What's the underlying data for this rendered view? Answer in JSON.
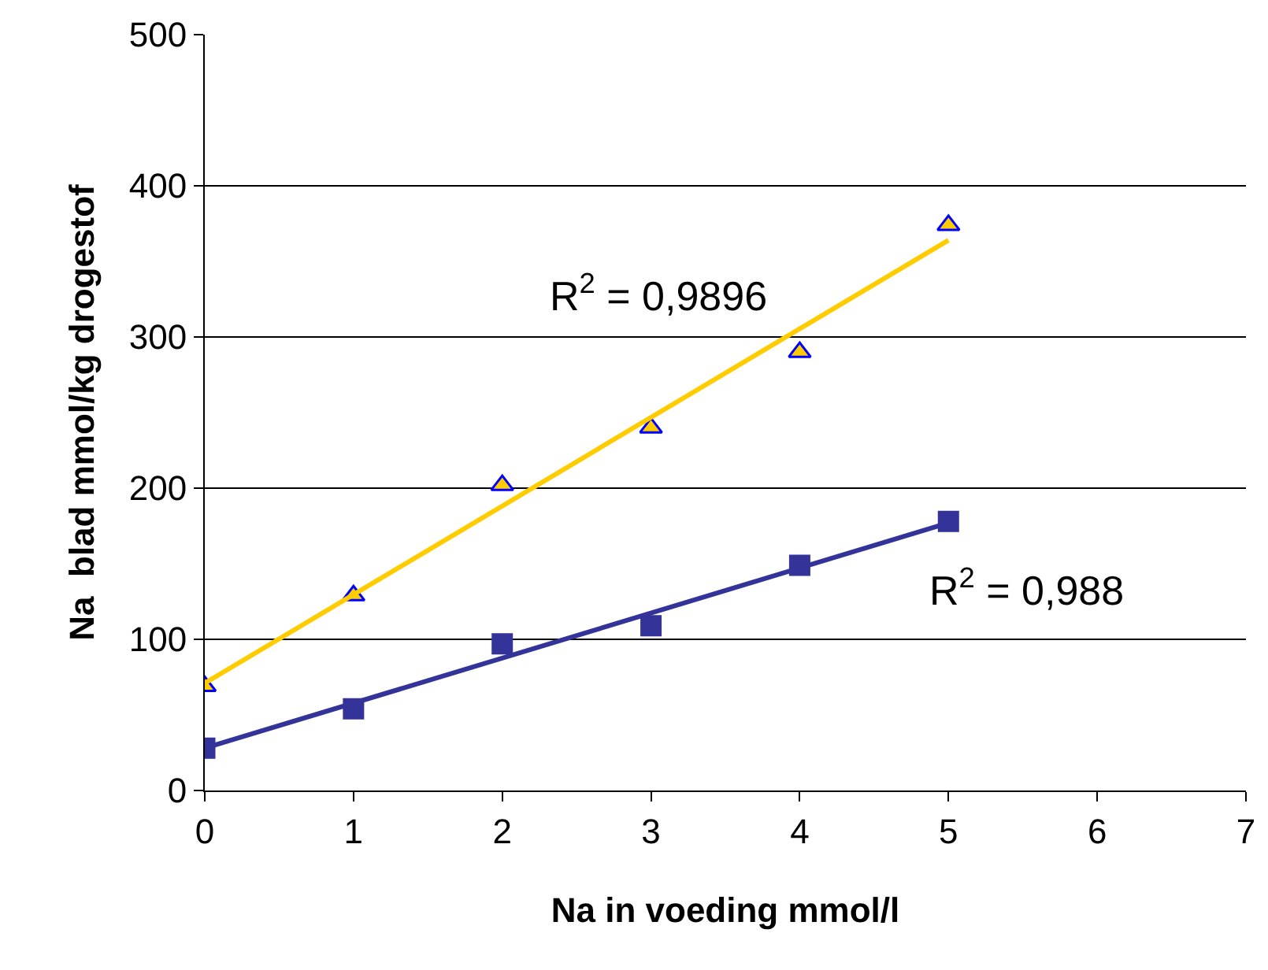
{
  "chart_data": {
    "type": "scatter",
    "xlabel": "Na in voeding mmol/l",
    "ylabel": "Na  blad mmol/kg drogestof",
    "xlim": [
      0,
      7
    ],
    "xticks": [
      0,
      1,
      2,
      3,
      4,
      5,
      6,
      7
    ],
    "ylim": [
      0,
      500
    ],
    "yticks": [
      0,
      100,
      200,
      300,
      400,
      500
    ],
    "grid": "y",
    "legend": false,
    "series": [
      {
        "marker": "triangle",
        "color": "#ffcc00",
        "x": [
          0,
          1,
          2,
          3,
          4,
          5
        ],
        "values": [
          69,
          129,
          202,
          240,
          290,
          374
        ]
      },
      {
        "marker": "square",
        "color": "#333399",
        "x": [
          0,
          1,
          2,
          3,
          4,
          5
        ],
        "values": [
          28,
          54,
          97,
          109,
          149,
          178
        ]
      },
      {
        "type": "line",
        "marker": "none",
        "color": "#ffcc00",
        "x": [
          0,
          5
        ],
        "values": [
          71,
          364
        ]
      },
      {
        "type": "line",
        "marker": "none",
        "color": "#333399",
        "x": [
          0,
          5
        ],
        "values": [
          28,
          177
        ]
      }
    ],
    "annotations": [
      "R$^{2}$ = 0,9896",
      "R$^{2}$ = 0,988"
    ]
  }
}
